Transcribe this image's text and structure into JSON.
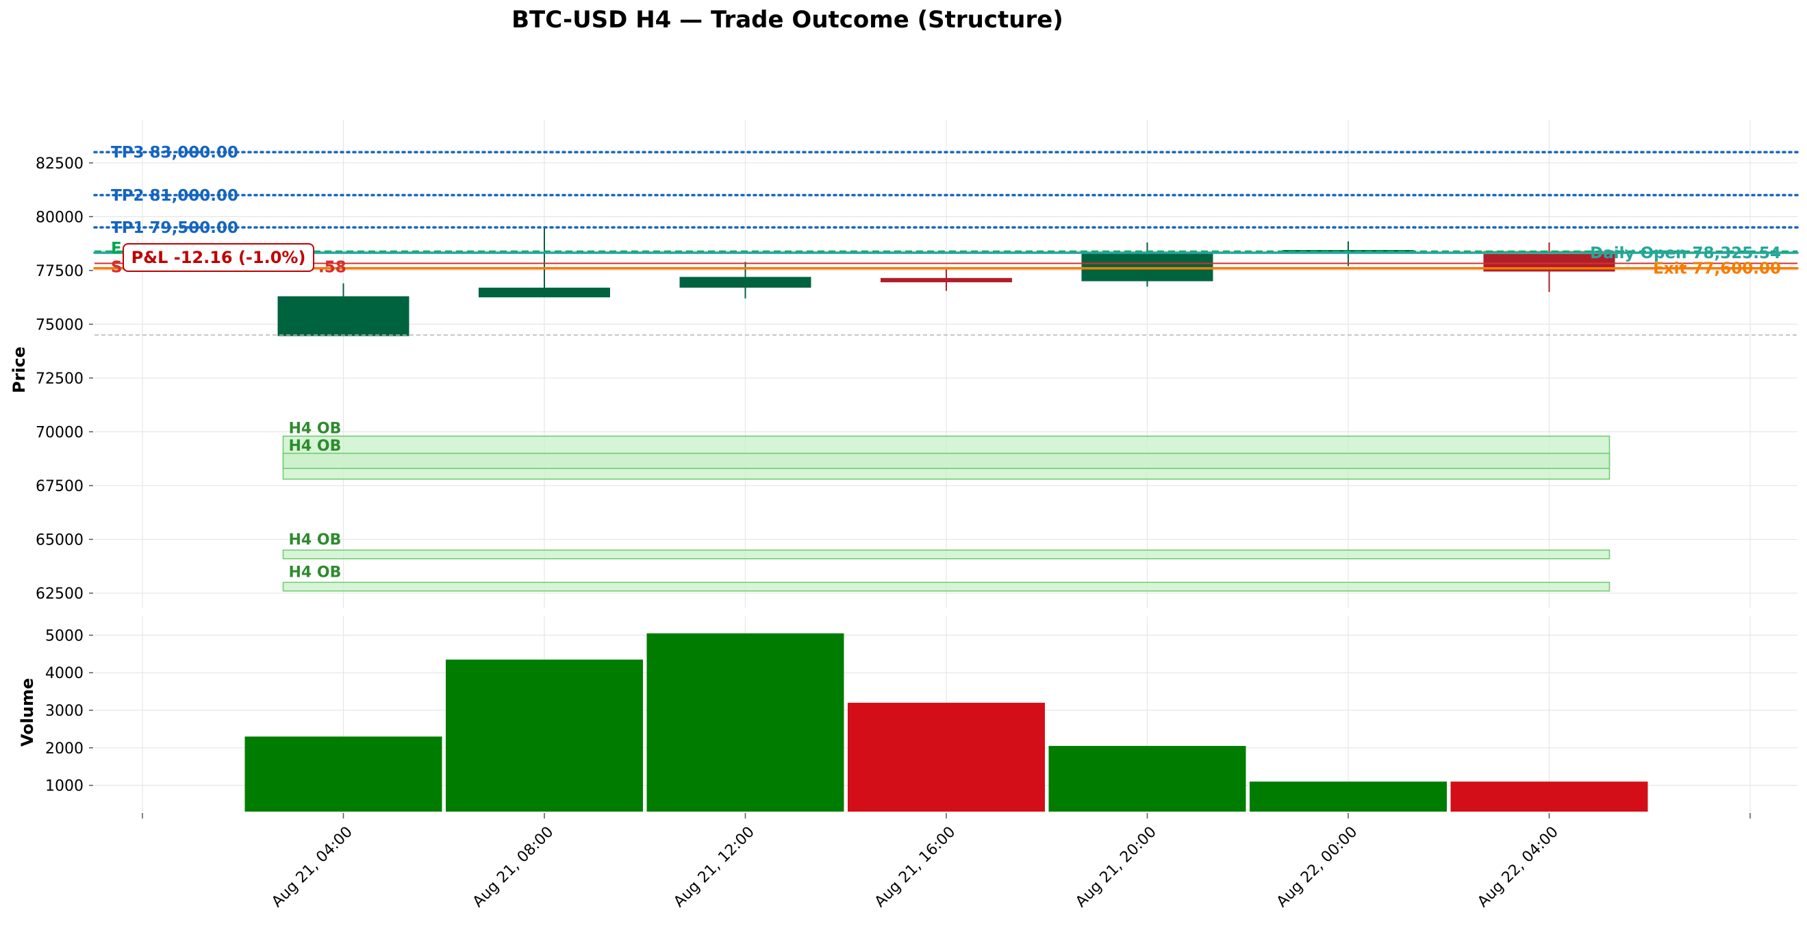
{
  "chart_data": {
    "type": "candlestick",
    "title": "BTC-USD H4 — Trade Outcome (Structure)",
    "price_panel": {
      "ylabel": "Price",
      "ylim": [
        61800,
        84500
      ],
      "yticks": [
        62500,
        65000,
        67500,
        70000,
        72500,
        75000,
        77500,
        80000,
        82500
      ],
      "grid": true
    },
    "volume_panel": {
      "ylabel": "Volume",
      "ylim": [
        300,
        5500
      ],
      "yticks": [
        1000,
        2000,
        3000,
        4000,
        5000
      ],
      "grid": true
    },
    "x_tick_labels": [
      "Aug 21, 04:00",
      "Aug 21, 08:00",
      "Aug 21, 12:00",
      "Aug 21, 16:00",
      "Aug 21, 20:00",
      "Aug 22, 00:00",
      "Aug 22, 04:00"
    ],
    "candles": [
      {
        "time": "Aug 21, 04:00",
        "open": 74450,
        "high": 76900,
        "low": 74450,
        "close": 76300,
        "volume": 2300
      },
      {
        "time": "Aug 21, 08:00",
        "open": 76250,
        "high": 79500,
        "low": 76250,
        "close": 76700,
        "volume": 4350
      },
      {
        "time": "Aug 21, 12:00",
        "open": 76700,
        "high": 77900,
        "low": 76200,
        "close": 77200,
        "volume": 5050
      },
      {
        "time": "Aug 21, 16:00",
        "open": 77150,
        "high": 77650,
        "low": 76550,
        "close": 76950,
        "volume": 3200
      },
      {
        "time": "Aug 21, 20:00",
        "open": 77000,
        "high": 78800,
        "low": 76750,
        "close": 78350,
        "volume": 2050
      },
      {
        "time": "Aug 22, 00:00",
        "open": 78350,
        "high": 78850,
        "low": 77700,
        "close": 78450,
        "volume": 1100
      },
      {
        "time": "Aug 22, 04:00",
        "open": 78400,
        "high": 78800,
        "low": 76500,
        "close": 77450,
        "volume": 1100
      }
    ],
    "levels": [
      {
        "label": "TP3 83,000.00",
        "price": 83000,
        "color": "#1565c0",
        "style": "dotted",
        "label_side": "left"
      },
      {
        "label": "TP2 81,000.00",
        "price": 81000,
        "color": "#1565c0",
        "style": "dotted",
        "label_side": "left"
      },
      {
        "label": "TP1 79,500.00",
        "price": 79500,
        "color": "#1565c0",
        "style": "dotted",
        "label_side": "left"
      },
      {
        "label": "Daily Open 78,325.54",
        "price": 78325.54,
        "color": "#26a69a",
        "style": "solid",
        "label_side": "right"
      },
      {
        "label": "Exit 77,600.00",
        "price": 77600,
        "color": "#f57c00",
        "style": "solid",
        "label_side": "right"
      }
    ],
    "entry_level": {
      "label_prefix": "E",
      "price": 78380,
      "color": "#00a651",
      "style": "dashed"
    },
    "stop_level": {
      "label_prefix": "S",
      "label_suffix": ".58",
      "price": 77830,
      "color": "#d32f2f",
      "style": "solid"
    },
    "reference_line_price": 74500,
    "pnl_label": "P&L -12.16 (-1.0%)",
    "order_blocks": [
      {
        "label": "H4 OB",
        "low": 67800,
        "high": 69800
      },
      {
        "label": "H4 OB",
        "low": 68300,
        "high": 69000
      },
      {
        "label": "H4 OB",
        "low": 64100,
        "high": 64500
      },
      {
        "label": "H4 OB",
        "low": 62600,
        "high": 63000
      }
    ],
    "colors": {
      "up": "#006340",
      "down": "#b01e2a",
      "volume_up": "#007d00",
      "volume_down": "#d40e18",
      "ob_fill": "#c8f0c8",
      "ob_edge": "#6ccb6c",
      "ob_label": "#2e8b2e",
      "grid": "#e6e6e6",
      "pnl": "#c00000"
    }
  }
}
